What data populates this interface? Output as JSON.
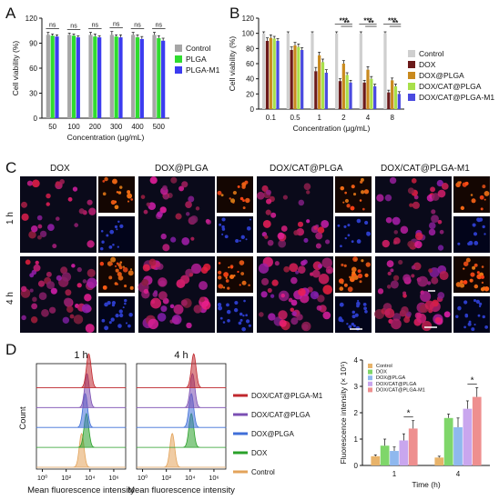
{
  "panel_labels": {
    "a": "A",
    "b": "B",
    "c": "C",
    "d": "D"
  },
  "chart_data": [
    {
      "id": "A",
      "type": "bar",
      "xlabel": "Concentration (μg/mL)",
      "ylabel": "Cell viability (%)",
      "ylim": [
        0,
        120
      ],
      "yticks": [
        0,
        30,
        60,
        90,
        120
      ],
      "categories": [
        "50",
        "100",
        "200",
        "300",
        "400",
        "500"
      ],
      "series": [
        {
          "name": "Control",
          "color": "#a6a6a6",
          "values": [
            100,
            100,
            100,
            100,
            100,
            100
          ],
          "err": [
            3,
            2,
            3,
            4,
            3,
            3
          ]
        },
        {
          "name": "PLGA",
          "color": "#2fdc2f",
          "values": [
            99,
            99,
            98,
            98,
            97,
            96
          ],
          "err": [
            2,
            2,
            3,
            2,
            3,
            3
          ]
        },
        {
          "name": "PLGA-M1",
          "color": "#3c3cf0",
          "values": [
            98,
            97,
            97,
            97,
            95,
            93
          ],
          "err": [
            2,
            2,
            2,
            3,
            3,
            3
          ]
        }
      ],
      "significance": [
        "ns",
        "ns",
        "ns",
        "ns",
        "ns",
        "ns"
      ],
      "legend": "right"
    },
    {
      "id": "B",
      "type": "bar",
      "xlabel": "Concentration (μg/mL)",
      "ylabel": "Cell viability (%)",
      "ylim": [
        0,
        120
      ],
      "yticks": [
        0,
        20,
        40,
        60,
        80,
        100,
        120
      ],
      "categories": [
        "0.1",
        "0.5",
        "1",
        "2",
        "4",
        "8"
      ],
      "series": [
        {
          "name": "Control",
          "color": "#cfcfcf",
          "values": [
            100,
            100,
            100,
            100,
            100,
            100
          ],
          "err": [
            2,
            2,
            2,
            2,
            2,
            2
          ]
        },
        {
          "name": "DOX",
          "color": "#6b1a1a",
          "values": [
            90,
            78,
            50,
            37,
            35,
            22
          ],
          "err": [
            4,
            4,
            5,
            3,
            3,
            3
          ]
        },
        {
          "name": "DOX@PLGA",
          "color": "#c98a1e",
          "values": [
            94,
            84,
            71,
            60,
            52,
            38
          ],
          "err": [
            4,
            4,
            4,
            4,
            4,
            3
          ]
        },
        {
          "name": "DOX/CAT@PLGA",
          "color": "#a8e04a",
          "values": [
            93,
            82,
            62,
            45,
            40,
            30
          ],
          "err": [
            3,
            4,
            4,
            3,
            3,
            3
          ]
        },
        {
          "name": "DOX/CAT@PLGA-M1",
          "color": "#4a4ae0",
          "values": [
            90,
            78,
            48,
            35,
            30,
            20
          ],
          "err": [
            3,
            3,
            4,
            3,
            3,
            3
          ]
        }
      ],
      "significance_top": [
        "***",
        "***",
        "***"
      ],
      "significance_inner": [
        "**",
        "**",
        "**"
      ],
      "legend": "right"
    },
    {
      "id": "D-right",
      "type": "bar",
      "xlabel": "Time (h)",
      "ylabel": "Fluorescence intensity (× 10⁵)",
      "ylim": [
        0,
        4
      ],
      "yticks": [
        0,
        1,
        2,
        3,
        4
      ],
      "categories": [
        "1",
        "4"
      ],
      "series": [
        {
          "name": "Control",
          "color": "#e8b36a",
          "values": [
            0.35,
            0.3
          ],
          "err": [
            0.05,
            0.05
          ]
        },
        {
          "name": "DOX",
          "color": "#7fd66a",
          "values": [
            0.75,
            1.8
          ],
          "err": [
            0.25,
            0.15
          ]
        },
        {
          "name": "DOX@PLGA",
          "color": "#8fb8ee",
          "values": [
            0.55,
            1.45
          ],
          "err": [
            0.15,
            0.35
          ]
        },
        {
          "name": "DOX/CAT@PLGA",
          "color": "#c9a6ee",
          "values": [
            0.95,
            2.15
          ],
          "err": [
            0.25,
            0.3
          ]
        },
        {
          "name": "DOX/CAT@PLGA-M1",
          "color": "#ee8f8f",
          "values": [
            1.4,
            2.6
          ],
          "err": [
            0.3,
            0.35
          ]
        }
      ],
      "significance": [
        "*",
        "*"
      ],
      "legend": "top-left"
    },
    {
      "id": "D-flow",
      "type": "area",
      "xlabel": "Mean fluorescence intensity",
      "ylabel": "Count",
      "xscale": "log",
      "xticks": [
        "10⁰",
        "10²",
        "10⁴",
        "10⁶"
      ],
      "panels": [
        {
          "title": "1 h",
          "peaks_log10": {
            "Control": 3.3,
            "DOX": 3.7,
            "DOX@PLGA": 3.6,
            "DOX/CAT@PLGA": 3.75,
            "DOX/CAT@PLGA-M1": 3.9
          }
        },
        {
          "title": "4 h",
          "peaks_log10": {
            "Control": 2.5,
            "DOX": 4.1,
            "DOX@PLGA": 4.1,
            "DOX/CAT@PLGA": 4.2,
            "DOX/CAT@PLGA-M1": 4.3
          }
        }
      ],
      "series": [
        {
          "name": "DOX/CAT@PLGA-M1",
          "color": "#c0272d"
        },
        {
          "name": "DOX/CAT@PLGA",
          "color": "#7b4fb3"
        },
        {
          "name": "DOX@PLGA",
          "color": "#3f6fd8"
        },
        {
          "name": "DOX",
          "color": "#2aa12a"
        },
        {
          "name": "Control",
          "color": "#e3a35a"
        }
      ],
      "legend": "right"
    }
  ],
  "micrographs": {
    "columns": [
      "DOX",
      "DOX@PLGA",
      "DOX/CAT@PLGA",
      "DOX/CAT@PLGA-M1"
    ],
    "rows": [
      "1 h",
      "4 h"
    ]
  }
}
